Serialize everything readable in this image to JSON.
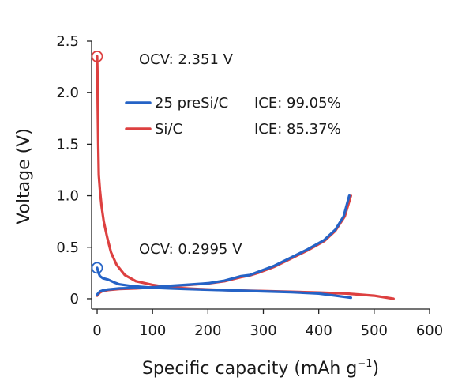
{
  "chart_data": {
    "type": "line",
    "xlabel": "Specific capacity (mAh g",
    "xlabel_sup": "−1",
    "xlabel_suffix": ")",
    "ylabel": "Voltage (V)",
    "xlim": [
      -10,
      600
    ],
    "ylim": [
      -0.1,
      2.5
    ],
    "xticks": [
      0,
      100,
      200,
      300,
      400,
      500,
      600
    ],
    "yticks": [
      0,
      0.5,
      1.0,
      1.5,
      2.0,
      2.5
    ],
    "ytick_labels": [
      "0",
      "0.5",
      "1.0",
      "1.5",
      "2.0",
      "2.5"
    ],
    "grid": false,
    "legend_position": "top-right",
    "series": [
      {
        "name": "25 preSi/C",
        "ice_label": "ICE: 99.05%",
        "color": "#2563c6",
        "discharge": {
          "x": [
            0,
            2,
            5,
            10,
            20,
            30,
            40,
            60,
            80,
            100,
            130,
            160,
            200,
            250,
            300,
            350,
            400,
            430,
            458
          ],
          "y": [
            0.2995,
            0.26,
            0.22,
            0.2,
            0.185,
            0.16,
            0.14,
            0.125,
            0.115,
            0.107,
            0.1,
            0.094,
            0.088,
            0.08,
            0.072,
            0.064,
            0.05,
            0.03,
            0.01
          ]
        },
        "charge": {
          "x": [
            0,
            5,
            10,
            20,
            40,
            70,
            100,
            130,
            160,
            200,
            230,
            260,
            275,
            290,
            320,
            350,
            380,
            410,
            430,
            445,
            455
          ],
          "y": [
            0.04,
            0.07,
            0.08,
            0.09,
            0.1,
            0.105,
            0.11,
            0.125,
            0.135,
            0.15,
            0.175,
            0.22,
            0.23,
            0.26,
            0.32,
            0.4,
            0.48,
            0.57,
            0.67,
            0.8,
            1.0
          ]
        }
      },
      {
        "name": "Si/C",
        "ice_label": "ICE: 85.37%",
        "color": "#dd4040",
        "discharge": {
          "x": [
            0,
            0.5,
            1,
            2,
            3,
            5,
            8,
            12,
            18,
            25,
            35,
            50,
            70,
            100,
            130,
            160,
            200,
            250,
            300,
            350,
            400,
            450,
            500,
            535
          ],
          "y": [
            2.351,
            2.2,
            1.9,
            1.5,
            1.2,
            1.06,
            0.9,
            0.75,
            0.6,
            0.45,
            0.33,
            0.23,
            0.17,
            0.135,
            0.11,
            0.1,
            0.09,
            0.08,
            0.075,
            0.068,
            0.06,
            0.05,
            0.03,
            0.0
          ]
        },
        "charge": {
          "x": [
            0,
            5,
            10,
            20,
            40,
            70,
            100,
            130,
            160,
            200,
            230,
            260,
            275,
            290,
            320,
            350,
            380,
            410,
            430,
            447,
            458
          ],
          "y": [
            0.03,
            0.06,
            0.075,
            0.085,
            0.095,
            0.1,
            0.11,
            0.122,
            0.132,
            0.148,
            0.17,
            0.21,
            0.225,
            0.25,
            0.31,
            0.39,
            0.47,
            0.56,
            0.66,
            0.8,
            1.0
          ]
        }
      }
    ],
    "annotations": [
      {
        "text": "OCV: 2.351 V",
        "marker_x": 0,
        "marker_y": 2.351,
        "color": "#dd4040"
      },
      {
        "text": "OCV: 0.2995 V",
        "marker_x": 0,
        "marker_y": 0.2995,
        "color": "#2563c6"
      }
    ]
  }
}
